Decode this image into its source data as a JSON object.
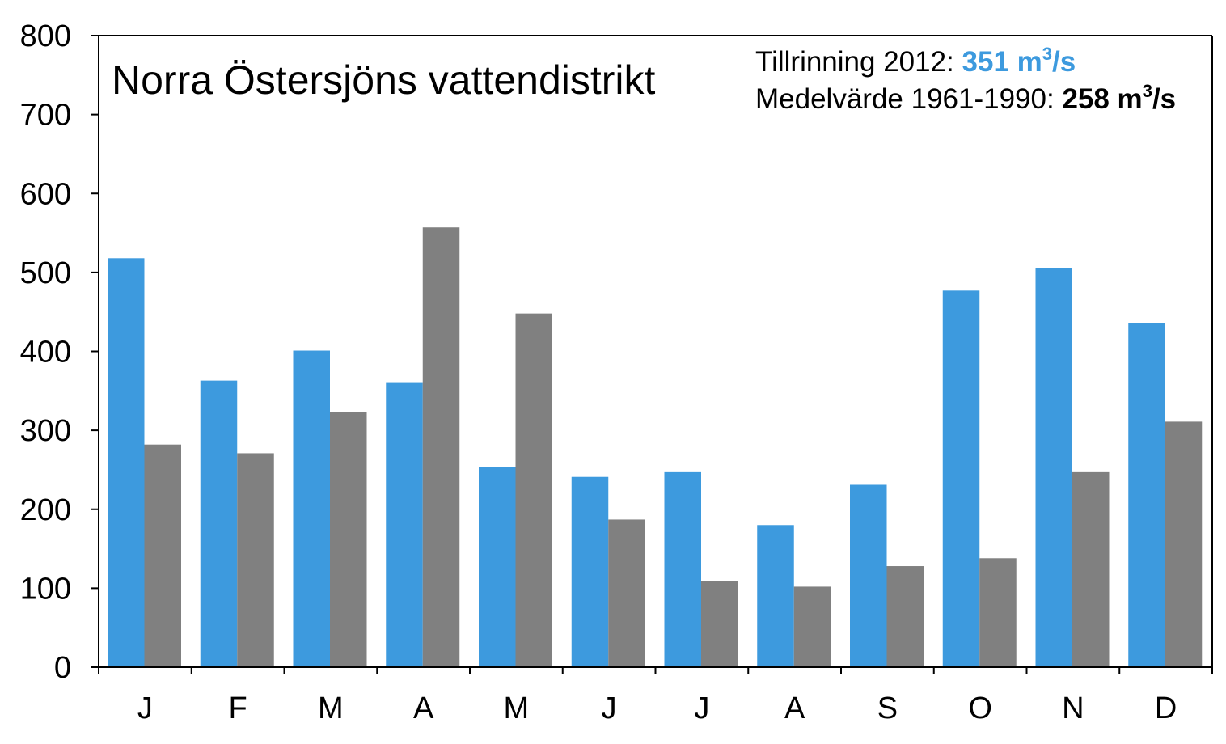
{
  "chart_data": {
    "type": "bar",
    "title": "Norra Östersjöns vattendistrikt",
    "categories": [
      "J",
      "F",
      "M",
      "A",
      "M",
      "J",
      "J",
      "A",
      "S",
      "O",
      "N",
      "D"
    ],
    "series": [
      {
        "values": [
          518,
          363,
          401,
          361,
          254,
          241,
          247,
          180,
          231,
          477,
          506,
          436
        ],
        "color": "#3d9ade"
      },
      {
        "values": [
          282,
          271,
          323,
          557,
          448,
          187,
          109,
          102,
          128,
          138,
          247,
          311
        ],
        "color": "#808080"
      }
    ],
    "ylim": [
      0,
      800
    ],
    "yticks": [
      "0",
      "100",
      "200",
      "300",
      "400",
      "500",
      "600",
      "700",
      "800"
    ],
    "grid": false,
    "xlabel": "",
    "ylabel": ""
  },
  "annotations": {
    "line1_label": "Tillrinning 2012: ",
    "line1_value": "351 m",
    "line1_sup": "3",
    "line1_unit": "/s",
    "line1_color": "#3d9ade",
    "line2_label": "Medelvärde 1961-1990: ",
    "line2_value": "258 m",
    "line2_sup": "3",
    "line2_unit": "/s"
  }
}
